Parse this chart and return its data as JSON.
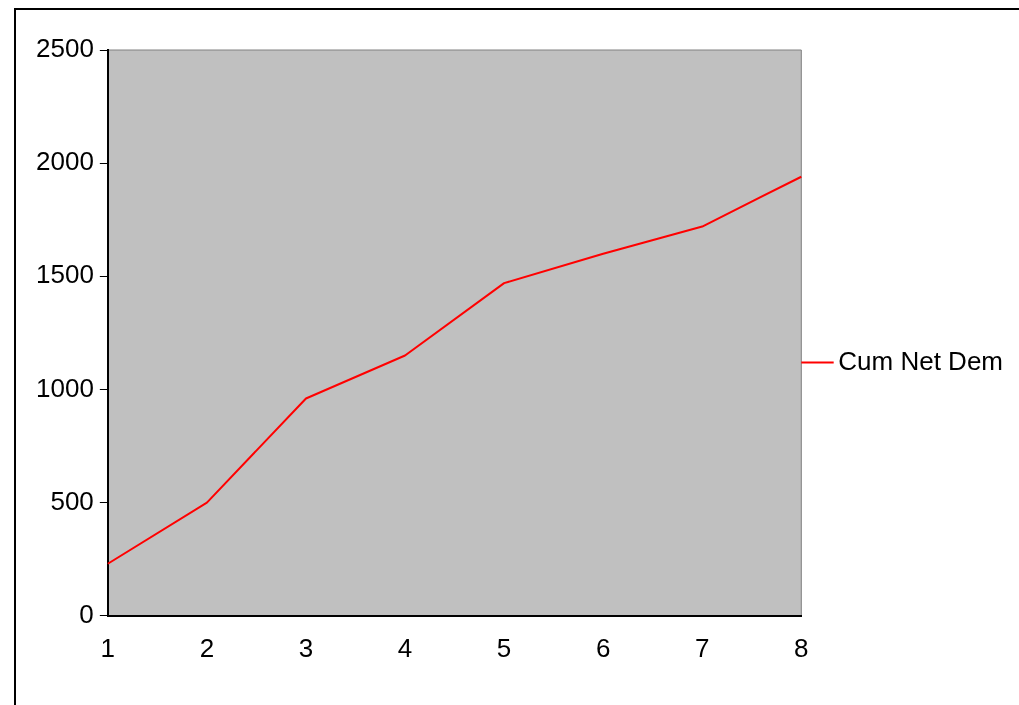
{
  "chart_data": {
    "type": "line",
    "categories": [
      "1",
      "2",
      "3",
      "4",
      "5",
      "6",
      "7",
      "8"
    ],
    "series": [
      {
        "name": "Cum Net Dem",
        "color": "#ff0000",
        "values": [
          230,
          500,
          960,
          1150,
          1470,
          1600,
          1720,
          1940
        ]
      }
    ],
    "ylim": [
      0,
      2500
    ],
    "yticks": [
      0,
      500,
      1000,
      1500,
      2000,
      2500
    ],
    "grid": false,
    "legend": "right",
    "marker": "none",
    "line_style": "solid"
  }
}
